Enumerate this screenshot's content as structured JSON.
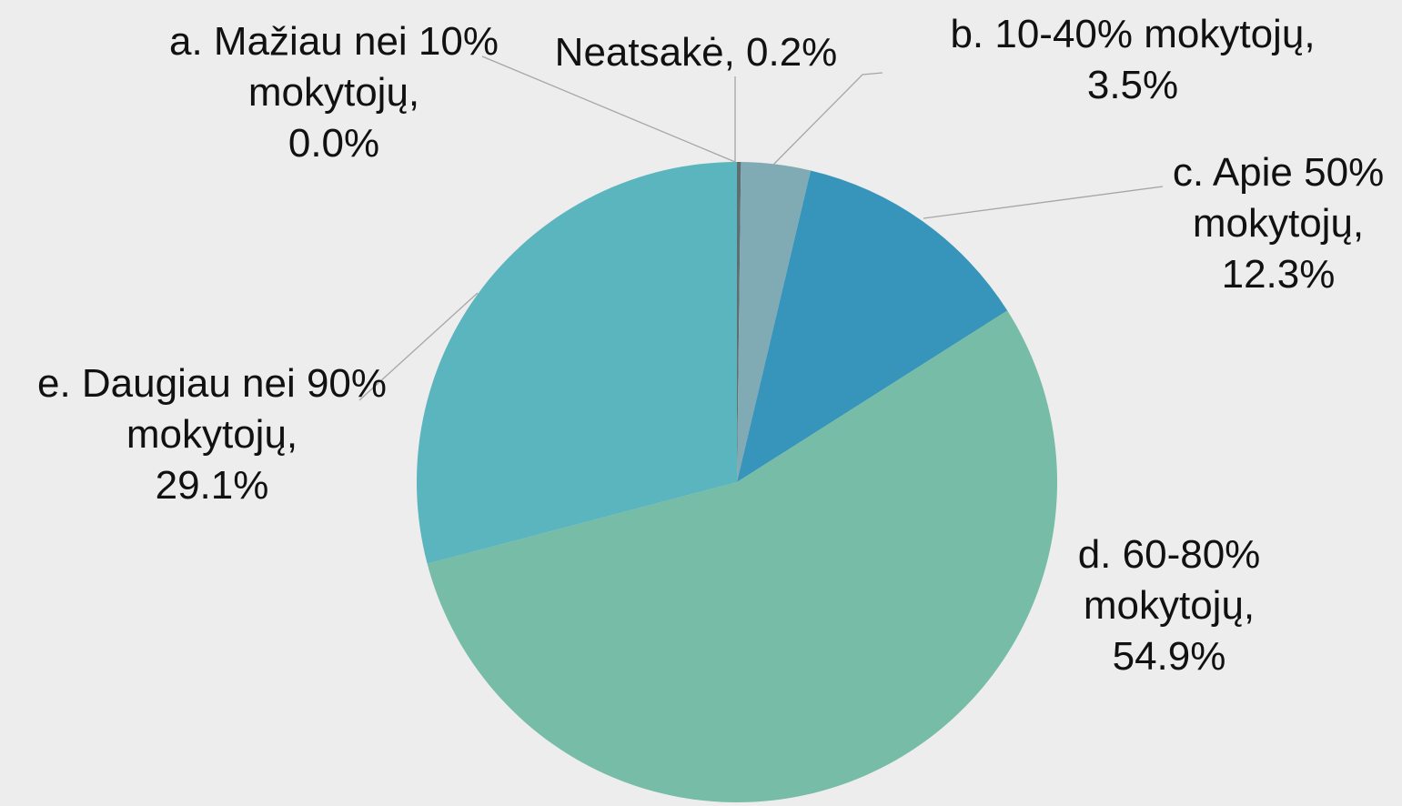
{
  "chart_data": {
    "type": "pie",
    "categories": [
      "a. Mažiau nei 10% mokytojų",
      "Neatsakė",
      "b. 10-40% mokytojų",
      "c. Apie 50% mokytojų",
      "d. 60-80% mokytojų",
      "e. Daugiau nei 90% mokytojų"
    ],
    "values": [
      0.0,
      0.2,
      3.5,
      12.3,
      54.9,
      29.1
    ],
    "value_labels": [
      "0.0%",
      "0.2%",
      "3.5%",
      "12.3%",
      "54.9%",
      "29.1%"
    ],
    "colors": [
      "#4a6a6e",
      "#5d6f73",
      "#80aab4",
      "#3794bb",
      "#77bca6",
      "#5bb5bf"
    ]
  }
}
